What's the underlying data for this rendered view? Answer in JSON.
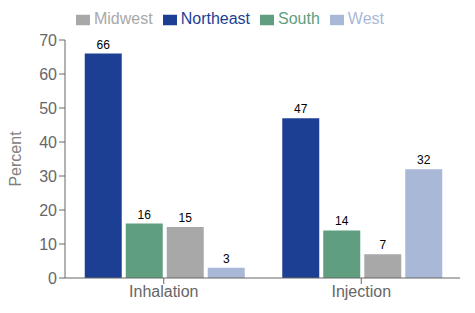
{
  "chart_data": {
    "type": "bar",
    "categories": [
      "Inhalation",
      "Injection"
    ],
    "series": [
      {
        "name": "Northeast",
        "color": "#1c3f94",
        "values": [
          66,
          47
        ]
      },
      {
        "name": "South",
        "color": "#5f9e7e",
        "values": [
          16,
          14
        ]
      },
      {
        "name": "Midwest",
        "color": "#a8a8a8",
        "values": [
          15,
          7
        ]
      },
      {
        "name": "West",
        "color": "#aab8d8",
        "values": [
          3,
          32
        ]
      }
    ],
    "ylabel": "Percent",
    "ylim": [
      0,
      70
    ],
    "yticks": [
      0,
      10,
      20,
      30,
      40,
      50,
      60,
      70
    ],
    "grid": false,
    "legend": "top",
    "data_labels": true
  }
}
